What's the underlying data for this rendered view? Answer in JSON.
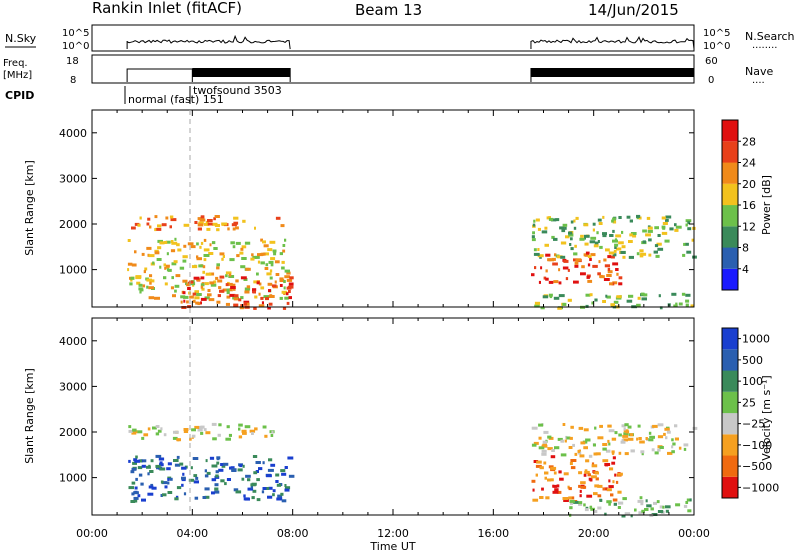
{
  "header": {
    "title": "Rankin Inlet (fitACF)",
    "beam": "Beam 13",
    "date": "14/Jun/2015"
  },
  "strip_labels": {
    "nsky": "N.Sky",
    "nsearch": "N.Search",
    "nsearch_dots": "........",
    "freq": "Freq.",
    "freq_unit": "[MHz]",
    "nave": "Nave",
    "nave_dots": "....",
    "cpid": "CPID",
    "noise_ticks_left": [
      "10^5",
      "10^0"
    ],
    "noise_ticks_right": [
      "10^5",
      "10^0"
    ],
    "freq_ticks": [
      "18",
      "8"
    ],
    "nave_ticks": [
      "60",
      "0"
    ]
  },
  "cpid_labels": [
    {
      "text": "normal (fast) 151"
    },
    {
      "text": "twofsound 3503"
    }
  ],
  "colors": {
    "power": [
      "#1a1aff",
      "#2a5fb0",
      "#3a8a5a",
      "#6cc04a",
      "#f2c21e",
      "#f08a1a",
      "#e8401a",
      "#e01010"
    ],
    "velocity": [
      "#e01010",
      "#f06a10",
      "#f5a020",
      "#c8c8c8",
      "#6cc04a",
      "#3a8a5a",
      "#2a5fb0",
      "#1a3fcf"
    ],
    "ground": "#bdbdbd"
  },
  "chart_data": [
    {
      "type": "heatmap",
      "panel": "power",
      "ylabel": "Slant Range [km]",
      "xlabel": "",
      "x_ticks": [
        "00:00",
        "04:00",
        "08:00",
        "12:00",
        "16:00",
        "20:00",
        "00:00"
      ],
      "xlim_hours": [
        0,
        24
      ],
      "ylim_km": [
        180,
        4500
      ],
      "y_ticks": [
        1000,
        2000,
        3000,
        4000
      ],
      "colorbar": {
        "label": "Power [dB]",
        "ticks": [
          "4",
          "8",
          "12",
          "16",
          "20",
          "24",
          "28"
        ],
        "range": [
          0,
          30
        ]
      },
      "data_windows_hours": [
        [
          1.4,
          7.9
        ],
        [
          17.5,
          24.0
        ]
      ],
      "bands": [
        {
          "t0": 1.4,
          "t1": 7.8,
          "r0": 1900,
          "r1": 2200,
          "level": 5
        },
        {
          "t0": 1.4,
          "t1": 7.8,
          "r0": 400,
          "r1": 1700,
          "level": 4
        },
        {
          "t0": 3.5,
          "t1": 7.9,
          "r0": 180,
          "r1": 900,
          "level": 6
        },
        {
          "t0": 17.5,
          "t1": 21.0,
          "r0": 700,
          "r1": 1400,
          "level": 6
        },
        {
          "t0": 17.5,
          "t1": 24.0,
          "r0": 1300,
          "r1": 2200,
          "level": 3
        },
        {
          "t0": 17.5,
          "t1": 24.0,
          "r0": 180,
          "r1": 500,
          "level": 3
        }
      ]
    },
    {
      "type": "heatmap",
      "panel": "velocity",
      "ylabel": "Slant Range [km]",
      "xlabel": "Time UT",
      "x_ticks": [
        "00:00",
        "04:00",
        "08:00",
        "12:00",
        "16:00",
        "20:00",
        "00:00"
      ],
      "xlim_hours": [
        0,
        24
      ],
      "ylim_km": [
        180,
        4500
      ],
      "y_ticks": [
        1000,
        2000,
        3000,
        4000
      ],
      "colorbar": {
        "label": "Velocity [m s⁻¹]",
        "ticks": [
          "1000",
          "500",
          "100",
          "25",
          "−25",
          "−100",
          "−500",
          "−1000"
        ]
      },
      "data_windows_hours": [
        [
          1.4,
          7.9
        ],
        [
          17.5,
          24.0
        ]
      ],
      "bands": [
        {
          "t0": 1.4,
          "t1": 7.8,
          "r0": 1850,
          "r1": 2200,
          "level": 3
        },
        {
          "t0": 1.4,
          "t1": 7.9,
          "r0": 500,
          "r1": 1500,
          "level": 6
        },
        {
          "t0": 17.5,
          "t1": 21.0,
          "r0": 500,
          "r1": 1500,
          "level": 1
        },
        {
          "t0": 17.5,
          "t1": 24.0,
          "r0": 1500,
          "r1": 2200,
          "level": 3
        },
        {
          "t0": 19.0,
          "t1": 24.0,
          "r0": 180,
          "r1": 600,
          "level": 4
        }
      ]
    }
  ]
}
